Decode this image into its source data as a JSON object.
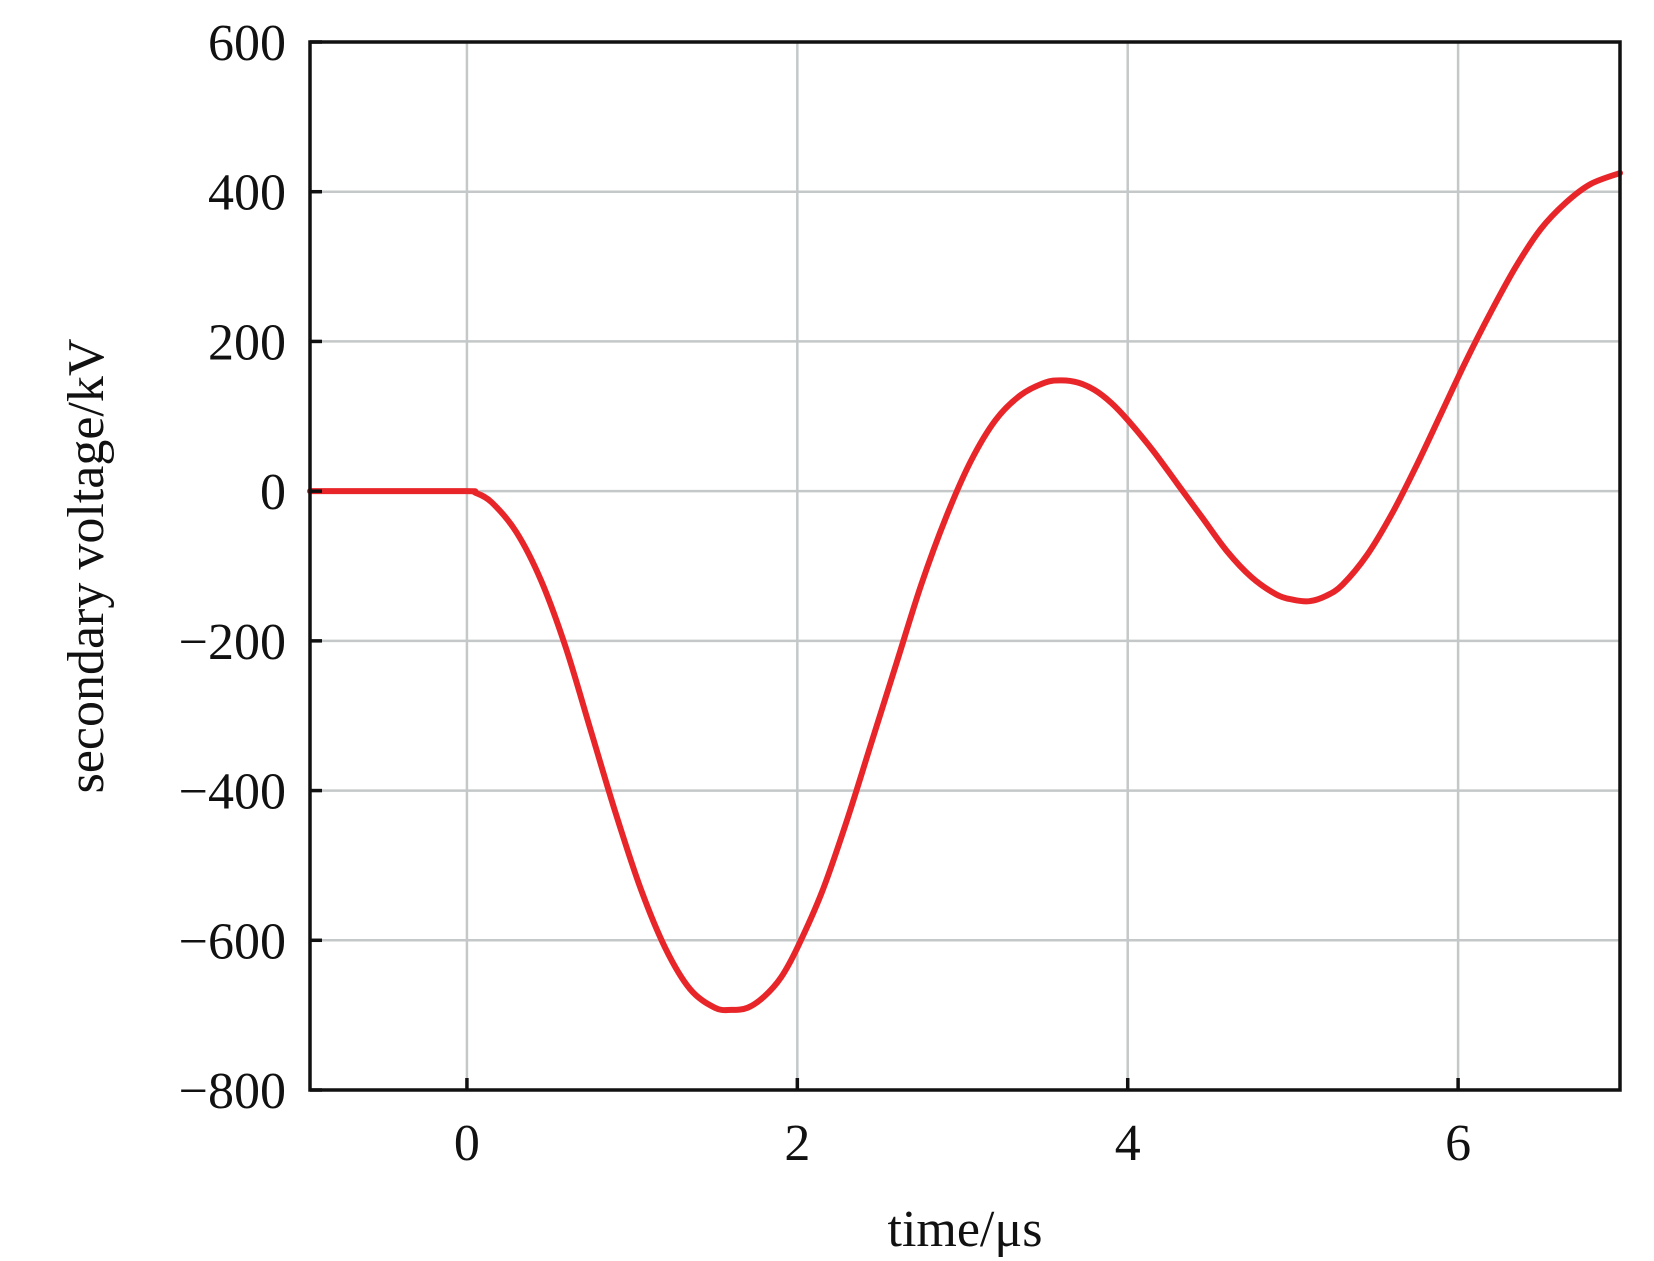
{
  "chart_data": {
    "type": "line",
    "xlabel": "time/μs",
    "ylabel": "secondary voltage/kV",
    "xlim": [
      -0.95,
      6.98
    ],
    "ylim": [
      -800,
      600
    ],
    "x_ticks": [
      0,
      2,
      4,
      6
    ],
    "x_tick_labels": [
      "0",
      "2",
      "4",
      "6"
    ],
    "y_ticks": [
      600,
      400,
      200,
      0,
      -200,
      -400,
      -600,
      -800
    ],
    "y_tick_labels": [
      "600",
      "400",
      "200",
      "0",
      "−200",
      "−400",
      "−600",
      "−800"
    ],
    "grid": true,
    "series": [
      {
        "color": "#e8262a",
        "x": [
          -0.95,
          -0.5,
          0,
          0.05,
          0.15,
          0.3,
          0.45,
          0.6,
          0.75,
          0.9,
          1.05,
          1.2,
          1.35,
          1.5,
          1.6,
          1.7,
          1.8,
          1.9,
          2.0,
          2.15,
          2.3,
          2.45,
          2.6,
          2.75,
          2.9,
          3.05,
          3.2,
          3.35,
          3.5,
          3.6,
          3.7,
          3.8,
          3.9,
          4.0,
          4.15,
          4.3,
          4.45,
          4.6,
          4.75,
          4.9,
          5.0,
          5.1,
          5.2,
          5.3,
          5.45,
          5.6,
          5.75,
          5.9,
          6.05,
          6.2,
          6.35,
          6.5,
          6.65,
          6.8,
          6.98
        ],
        "y": [
          0,
          0,
          0,
          -2,
          -15,
          -55,
          -120,
          -210,
          -320,
          -430,
          -530,
          -610,
          -665,
          -690,
          -693,
          -690,
          -675,
          -650,
          -610,
          -535,
          -440,
          -335,
          -230,
          -125,
          -35,
          40,
          95,
          128,
          145,
          148,
          145,
          135,
          118,
          95,
          55,
          10,
          -35,
          -80,
          -115,
          -138,
          -145,
          -147,
          -140,
          -125,
          -85,
          -30,
          35,
          105,
          175,
          240,
          300,
          350,
          385,
          410,
          425
        ]
      }
    ]
  }
}
